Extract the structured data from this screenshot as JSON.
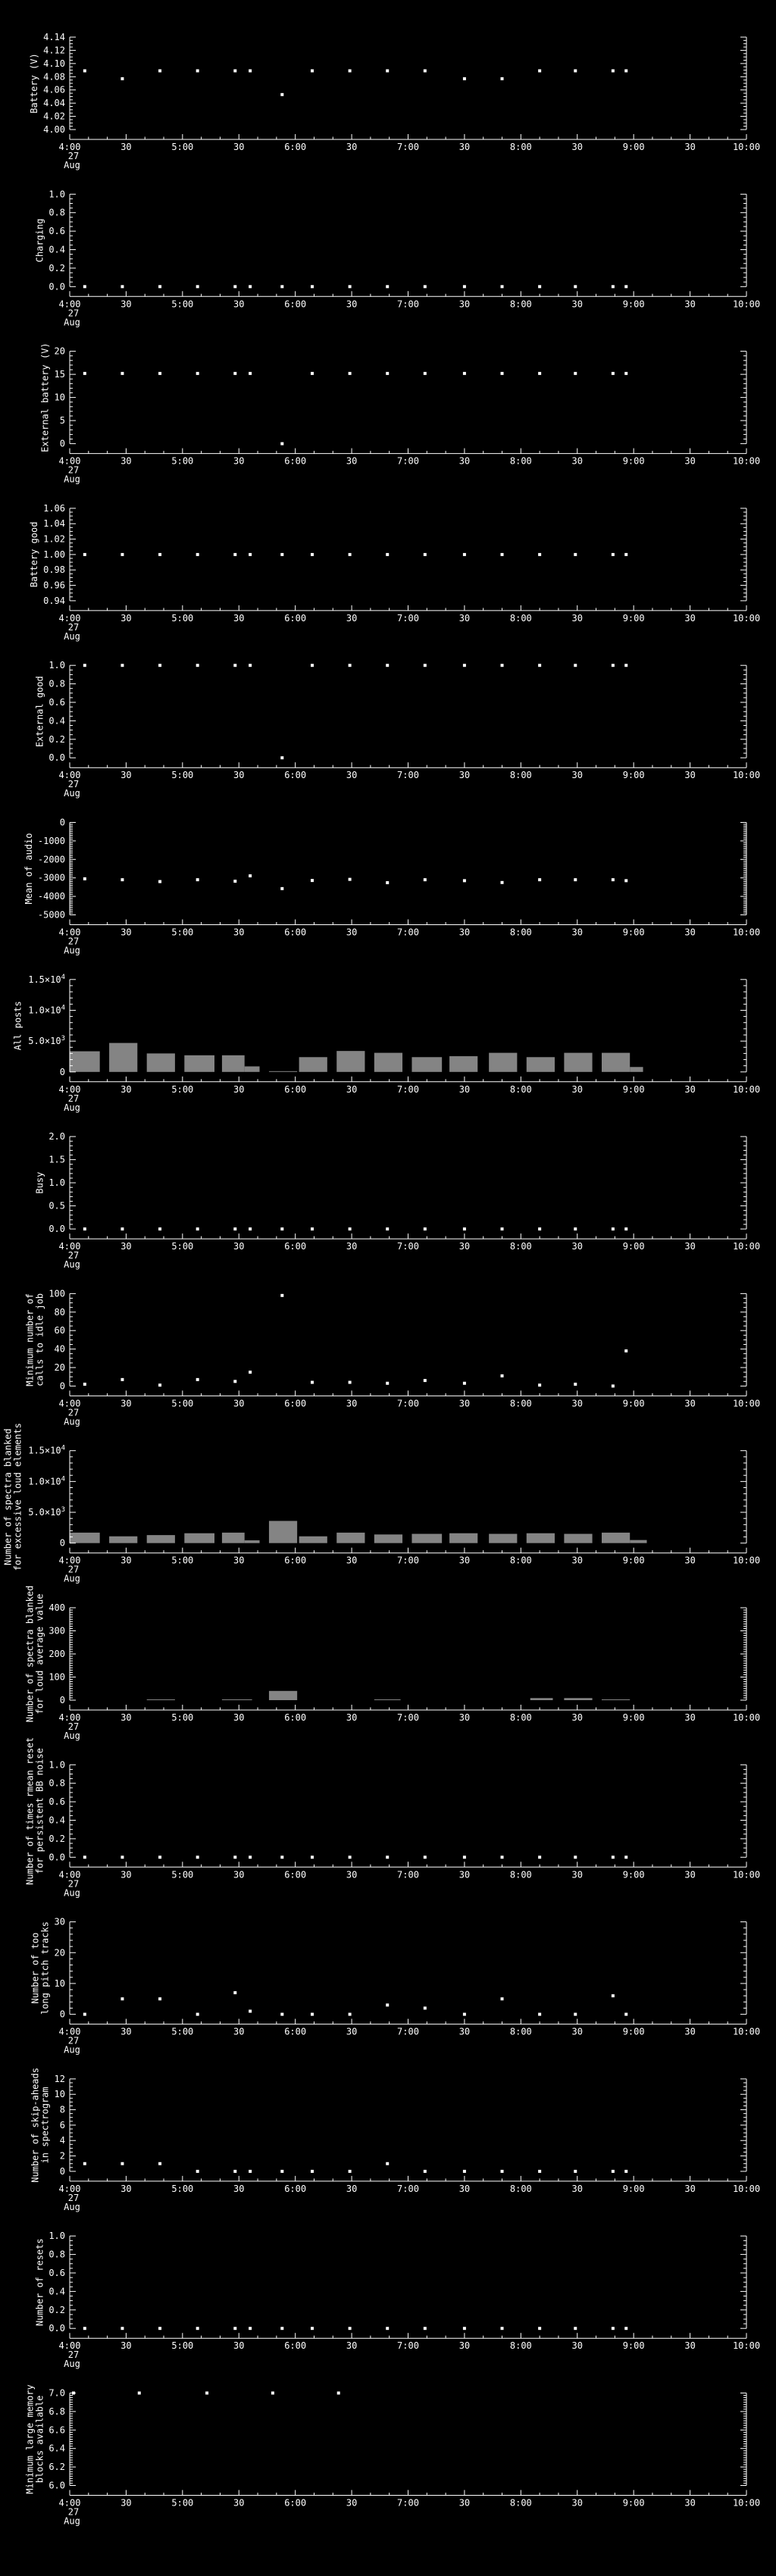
{
  "colors": {
    "background": "#000000",
    "foreground": "#ffffff",
    "bar": "#848484"
  },
  "x_axis": {
    "xlim_minutes": [
      240,
      600
    ],
    "major_tick_step_minutes": 30,
    "minor_tick_step_minutes": 10,
    "major_tick_labels": [
      "4:00",
      "30",
      "5:00",
      "30",
      "6:00",
      "30",
      "7:00",
      "30",
      "8:00",
      "30",
      "9:00",
      "30",
      "10:00"
    ],
    "date_under_first_tick": [
      "27",
      "Aug"
    ]
  },
  "sample_times_minutes": [
    248,
    268,
    288,
    308,
    328,
    336,
    353,
    369,
    389,
    409,
    429,
    450,
    470,
    490,
    509,
    529,
    536
  ],
  "chart_data": {
    "type": "multi-panel-timeseries",
    "x_start": "4:00 27 Aug",
    "x_end": "10:00",
    "panels": [
      {
        "id": "battery-v",
        "type": "scatter",
        "ylabel_lines": [
          "Battery (V)"
        ],
        "ylim": [
          4.0,
          4.14
        ],
        "ytick_values": [
          4.0,
          4.02,
          4.04,
          4.06,
          4.08,
          4.1,
          4.12,
          4.14
        ],
        "ytick_labels": [
          "4.00",
          "4.02",
          "4.04",
          "4.06",
          "4.08",
          "4.10",
          "4.12",
          "4.14"
        ],
        "yminor": 3,
        "values": [
          4.089,
          4.077,
          4.089,
          4.089,
          4.089,
          4.089,
          4.053,
          4.089,
          4.089,
          4.089,
          4.089,
          4.077,
          4.077,
          4.089,
          4.089,
          4.089,
          4.089
        ]
      },
      {
        "id": "charging",
        "type": "scatter",
        "ylabel_lines": [
          "Charging"
        ],
        "ylim": [
          0.0,
          1.0
        ],
        "ytick_values": [
          0.0,
          0.2,
          0.4,
          0.6,
          0.8,
          1.0
        ],
        "ytick_labels": [
          "0.0",
          "0.2",
          "0.4",
          "0.6",
          "0.8",
          "1.0"
        ],
        "yminor": 3,
        "values": [
          0,
          0,
          0,
          0,
          0,
          0,
          0,
          0,
          0,
          0,
          0,
          0,
          0,
          0,
          0,
          0,
          0
        ]
      },
      {
        "id": "external-battery-v",
        "type": "scatter",
        "ylabel_lines": [
          "External battery (V)"
        ],
        "ylim": [
          0,
          20
        ],
        "ytick_values": [
          0,
          5,
          10,
          15,
          20
        ],
        "ytick_labels": [
          "0",
          "5",
          "10",
          "15",
          "20"
        ],
        "yminor": 4,
        "values": [
          15.2,
          15.2,
          15.2,
          15.2,
          15.2,
          15.2,
          0,
          15.2,
          15.2,
          15.2,
          15.2,
          15.2,
          15.2,
          15.2,
          15.2,
          15.2,
          15.2
        ]
      },
      {
        "id": "battery-good",
        "type": "scatter",
        "ylabel_lines": [
          "Battery good"
        ],
        "ylim": [
          0.94,
          1.06
        ],
        "ytick_values": [
          0.94,
          0.96,
          0.98,
          1.0,
          1.02,
          1.04,
          1.06
        ],
        "ytick_labels": [
          "0.94",
          "0.96",
          "0.98",
          "1.00",
          "1.02",
          "1.04",
          "1.06"
        ],
        "yminor": 3,
        "values": [
          1.0,
          1.0,
          1.0,
          1.0,
          1.0,
          1.0,
          1.0,
          1.0,
          1.0,
          1.0,
          1.0,
          1.0,
          1.0,
          1.0,
          1.0,
          1.0,
          1.0
        ]
      },
      {
        "id": "external-good",
        "type": "scatter",
        "ylabel_lines": [
          "External good"
        ],
        "ylim": [
          0.0,
          1.0
        ],
        "ytick_values": [
          0.0,
          0.2,
          0.4,
          0.6,
          0.8,
          1.0
        ],
        "ytick_labels": [
          "0.0",
          "0.2",
          "0.4",
          "0.6",
          "0.8",
          "1.0"
        ],
        "yminor": 3,
        "values": [
          1,
          1,
          1,
          1,
          1,
          1,
          0,
          1,
          1,
          1,
          1,
          1,
          1,
          1,
          1,
          1,
          1
        ]
      },
      {
        "id": "mean-of-audio",
        "type": "scatter",
        "ylabel_lines": [
          "Mean of audio"
        ],
        "ylim": [
          -5000,
          0
        ],
        "ytick_values": [
          -5000,
          -4000,
          -3000,
          -2000,
          -1000,
          0
        ],
        "ytick_labels": [
          "-5000",
          "-4000",
          "-3000",
          "-2000",
          "-1000",
          "0"
        ],
        "yminor": 9,
        "values": [
          -3050,
          -3100,
          -3200,
          -3100,
          -3180,
          -2890,
          -3580,
          -3140,
          -3080,
          -3260,
          -3100,
          -3150,
          -3250,
          -3100,
          -3100,
          -3100,
          -3150
        ]
      },
      {
        "id": "all-posts",
        "type": "bar",
        "ylabel_lines": [
          "All posts"
        ],
        "ylim": [
          0,
          15000
        ],
        "ytick_values": [
          0,
          5000,
          10000,
          15000
        ],
        "ytick_labels": [
          "0",
          "5.0×10^3",
          "1.0×10^4",
          "1.5×10^4"
        ],
        "yminor": 4,
        "bars": [
          [
            240,
            256,
            3350
          ],
          [
            261,
            276,
            4700
          ],
          [
            281,
            296,
            3000
          ],
          [
            301,
            317,
            2700
          ],
          [
            321,
            333,
            2700
          ],
          [
            333,
            341,
            900
          ],
          [
            346,
            361,
            100
          ],
          [
            362,
            377,
            2400
          ],
          [
            382,
            397,
            3400
          ],
          [
            402,
            417,
            3100
          ],
          [
            422,
            438,
            2400
          ],
          [
            442,
            457,
            2550
          ],
          [
            463,
            478,
            3100
          ],
          [
            483,
            498,
            2400
          ],
          [
            503,
            518,
            3100
          ],
          [
            523,
            538,
            3100
          ],
          [
            538,
            545,
            800
          ]
        ]
      },
      {
        "id": "busy",
        "type": "scatter",
        "ylabel_lines": [
          "Busy"
        ],
        "ylim": [
          0.0,
          2.0
        ],
        "ytick_values": [
          0.0,
          0.5,
          1.0,
          1.5,
          2.0
        ],
        "ytick_labels": [
          "0.0",
          "0.5",
          "1.0",
          "1.5",
          "2.0"
        ],
        "yminor": 4,
        "values": [
          0,
          0,
          0,
          0,
          0,
          0,
          0,
          0,
          0,
          0,
          0,
          0,
          0,
          0,
          0,
          0,
          0
        ]
      },
      {
        "id": "minimum-calls-to-idle-job",
        "type": "scatter",
        "ylabel_lines": [
          "Minimum number of",
          "calls to idle job"
        ],
        "ylim": [
          0,
          100
        ],
        "ytick_values": [
          0,
          20,
          40,
          60,
          80,
          100
        ],
        "ytick_labels": [
          "0",
          "20",
          "40",
          "60",
          "80",
          "100"
        ],
        "yminor": 3,
        "values": [
          2,
          7,
          1,
          7,
          5,
          15,
          98,
          4,
          4,
          3,
          6,
          3,
          11,
          1,
          2,
          0,
          38
        ]
      },
      {
        "id": "spectra-blanked-excessive-loud-elements",
        "type": "bar",
        "ylabel_lines": [
          "Number of spectra blanked",
          "for excessive loud elements"
        ],
        "ylim": [
          0,
          15000
        ],
        "ytick_values": [
          0,
          5000,
          10000,
          15000
        ],
        "ytick_labels": [
          "0",
          "5.0×10^3",
          "1.0×10^4",
          "1.5×10^4"
        ],
        "yminor": 4,
        "bars": [
          [
            240,
            256,
            1700
          ],
          [
            261,
            276,
            1100
          ],
          [
            281,
            296,
            1300
          ],
          [
            301,
            317,
            1600
          ],
          [
            321,
            333,
            1700
          ],
          [
            333,
            341,
            450
          ],
          [
            346,
            361,
            3600
          ],
          [
            362,
            377,
            1100
          ],
          [
            382,
            397,
            1700
          ],
          [
            402,
            417,
            1400
          ],
          [
            422,
            438,
            1500
          ],
          [
            442,
            457,
            1600
          ],
          [
            463,
            478,
            1500
          ],
          [
            483,
            498,
            1600
          ],
          [
            503,
            518,
            1500
          ],
          [
            523,
            538,
            1700
          ],
          [
            538,
            547,
            500
          ]
        ]
      },
      {
        "id": "spectra-blanked-loud-average-value",
        "type": "bar",
        "ylabel_lines": [
          "Number of spectra blanked",
          "for loud average value"
        ],
        "ylim": [
          0,
          400
        ],
        "ytick_values": [
          0,
          100,
          200,
          300,
          400
        ],
        "ytick_labels": [
          "0",
          "100",
          "200",
          "300",
          "400"
        ],
        "yminor": 9,
        "bars": [
          [
            281,
            296,
            3
          ],
          [
            321,
            337,
            3
          ],
          [
            346,
            361,
            40
          ],
          [
            402,
            416,
            3
          ],
          [
            485,
            497,
            9
          ],
          [
            503,
            518,
            9
          ],
          [
            523,
            538,
            3
          ]
        ]
      },
      {
        "id": "times-rmean-reset-bb-noise",
        "type": "scatter",
        "ylabel_lines": [
          "Number of times rmean reset",
          "for persistent BB noise"
        ],
        "ylim": [
          0.0,
          1.0
        ],
        "ytick_values": [
          0.0,
          0.2,
          0.4,
          0.6,
          0.8,
          1.0
        ],
        "ytick_labels": [
          "0.0",
          "0.2",
          "0.4",
          "0.6",
          "0.8",
          "1.0"
        ],
        "yminor": 3,
        "values": [
          0,
          0,
          0,
          0,
          0,
          0,
          0,
          0,
          0,
          0,
          0,
          0,
          0,
          0,
          0,
          0,
          0
        ]
      },
      {
        "id": "too-long-pitch-tracks",
        "type": "scatter",
        "ylabel_lines": [
          "Number of too",
          "long pitch tracks"
        ],
        "ylim": [
          0,
          30
        ],
        "ytick_values": [
          0,
          10,
          20,
          30
        ],
        "ytick_labels": [
          "0",
          "10",
          "20",
          "30"
        ],
        "yminor": 4,
        "values": [
          0,
          5,
          5,
          0,
          7,
          1,
          0,
          0,
          0,
          3,
          2,
          0,
          5,
          0,
          0,
          6,
          0
        ]
      },
      {
        "id": "skip-aheads-in-spectrogram",
        "type": "scatter",
        "ylabel_lines": [
          "Number of skip-aheads",
          "in spectrogram"
        ],
        "ylim": [
          0,
          12
        ],
        "ytick_values": [
          0,
          2,
          4,
          6,
          8,
          10,
          12
        ],
        "ytick_labels": [
          "0",
          "2",
          "4",
          "6",
          "8",
          "10",
          "12"
        ],
        "yminor": 3,
        "values": [
          1,
          1,
          1,
          0,
          0,
          0,
          0,
          0,
          0,
          1,
          0,
          0,
          0,
          0,
          0,
          0,
          0
        ]
      },
      {
        "id": "number-of-resets",
        "type": "scatter",
        "ylabel_lines": [
          "Number of resets"
        ],
        "ylim": [
          0.0,
          1.0
        ],
        "ytick_values": [
          0.0,
          0.2,
          0.4,
          0.6,
          0.8,
          1.0
        ],
        "ytick_labels": [
          "0.0",
          "0.2",
          "0.4",
          "0.6",
          "0.8",
          "1.0"
        ],
        "yminor": 3,
        "values": [
          0,
          0,
          0,
          0,
          0,
          0,
          0,
          0,
          0,
          0,
          0,
          0,
          0,
          0,
          0,
          0,
          0
        ]
      },
      {
        "id": "minimum-large-memory-blocks",
        "type": "scatter",
        "ylabel_lines": [
          "Minimum large memory",
          "blocks available"
        ],
        "ylim": [
          6.0,
          7.0
        ],
        "ytick_values": [
          6.0,
          6.2,
          6.4,
          6.6,
          6.8,
          7.0
        ],
        "ytick_labels": [
          "6.0",
          "6.2",
          "6.4",
          "6.6",
          "6.8",
          "7.0"
        ],
        "yminor": 7,
        "x_override": [
          242,
          277,
          313,
          348,
          383
        ],
        "values": [
          7,
          7,
          7,
          7,
          7
        ]
      }
    ]
  }
}
